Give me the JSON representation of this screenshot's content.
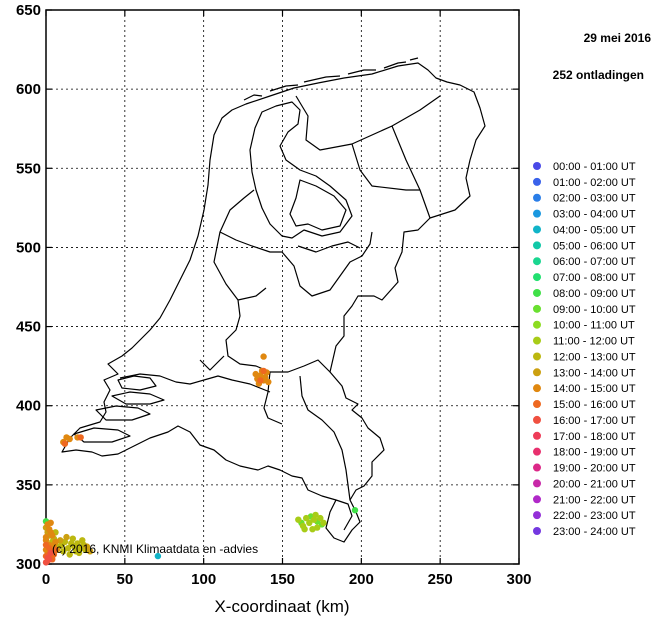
{
  "chart_data": {
    "type": "scatter",
    "title": "",
    "xlabel": "X-coordinaat (km)",
    "ylabel": "",
    "xlim": [
      0,
      300
    ],
    "ylim": [
      300,
      650
    ],
    "x_ticks": [
      "0",
      "50",
      "100",
      "150",
      "200",
      "250",
      "300"
    ],
    "y_ticks": [
      "300",
      "350",
      "400",
      "450",
      "500",
      "550",
      "600",
      "650"
    ],
    "grid": true,
    "legend_position": "right",
    "date": "29 mei 2016",
    "count_label": "252 ontladingen",
    "copyright": "(c) 2016, KNMI Klimaatdata en -advies",
    "legend": [
      {
        "label": "00:00 - 01:00 UT",
        "color": "#4a4ae8"
      },
      {
        "label": "01:00 - 02:00 UT",
        "color": "#3a62ea"
      },
      {
        "label": "02:00 - 03:00 UT",
        "color": "#2a7ee8"
      },
      {
        "label": "03:00 - 04:00 UT",
        "color": "#1a98e0"
      },
      {
        "label": "04:00 - 05:00 UT",
        "color": "#10b4c8"
      },
      {
        "label": "05:00 - 06:00 UT",
        "color": "#12c8a8"
      },
      {
        "label": "06:00 - 07:00 UT",
        "color": "#1ad690"
      },
      {
        "label": "07:00 - 08:00 UT",
        "color": "#22e070"
      },
      {
        "label": "08:00 - 09:00 UT",
        "color": "#40e048"
      },
      {
        "label": "09:00 - 10:00 UT",
        "color": "#6ae030"
      },
      {
        "label": "10:00 - 11:00 UT",
        "color": "#8cdc20"
      },
      {
        "label": "11:00 - 12:00 UT",
        "color": "#a8cc18"
      },
      {
        "label": "12:00 - 13:00 UT",
        "color": "#bcb810"
      },
      {
        "label": "13:00 - 14:00 UT",
        "color": "#cca010"
      },
      {
        "label": "14:00 - 15:00 UT",
        "color": "#e08810"
      },
      {
        "label": "15:00 - 16:00 UT",
        "color": "#ee6820"
      },
      {
        "label": "16:00 - 17:00 UT",
        "color": "#f05040"
      },
      {
        "label": "17:00 - 18:00 UT",
        "color": "#ee3c58"
      },
      {
        "label": "18:00 - 19:00 UT",
        "color": "#e8306e"
      },
      {
        "label": "19:00 - 20:00 UT",
        "color": "#dc2888"
      },
      {
        "label": "20:00 - 21:00 UT",
        "color": "#c828a8"
      },
      {
        "label": "21:00 - 22:00 UT",
        "color": "#b028c8"
      },
      {
        "label": "22:00 - 23:00 UT",
        "color": "#9430d8"
      },
      {
        "label": "23:00 - 24:00 UT",
        "color": "#7438e0"
      }
    ],
    "series": [
      {
        "hour": 4,
        "points": [
          [
            71,
            305
          ]
        ]
      },
      {
        "hour": 8,
        "points": [
          [
            0,
            327
          ],
          [
            196,
            334
          ]
        ]
      },
      {
        "hour": 9,
        "points": [
          [
            162,
            326
          ],
          [
            168,
            330
          ],
          [
            172,
            327
          ],
          [
            175,
            325
          ]
        ]
      },
      {
        "hour": 11,
        "points": [
          [
            160,
            328
          ],
          [
            163,
            324
          ],
          [
            165,
            329
          ],
          [
            167,
            326
          ],
          [
            169,
            322
          ],
          [
            170,
            328
          ],
          [
            172,
            323
          ],
          [
            174,
            329
          ],
          [
            176,
            326
          ],
          [
            164,
            322
          ],
          [
            171,
            331
          ]
        ]
      },
      {
        "hour": 12,
        "points": [
          [
            2,
            318
          ],
          [
            4,
            314
          ],
          [
            5,
            316
          ],
          [
            8,
            311
          ],
          [
            10,
            312
          ],
          [
            12,
            314
          ],
          [
            14,
            310
          ],
          [
            16,
            313
          ],
          [
            18,
            311
          ],
          [
            19,
            308
          ],
          [
            20,
            313
          ],
          [
            22,
            310
          ],
          [
            23,
            315
          ],
          [
            24,
            312
          ],
          [
            25,
            309
          ],
          [
            21,
            307
          ],
          [
            15,
            306
          ],
          [
            11,
            308
          ],
          [
            6,
            320
          ],
          [
            17,
            316
          ]
        ]
      },
      {
        "hour": 13,
        "points": [
          [
            1,
            320
          ],
          [
            3,
            311
          ],
          [
            7,
            309
          ],
          [
            13,
            317
          ],
          [
            26,
            311
          ],
          [
            28,
            308
          ],
          [
            9,
            315
          ],
          [
            0,
            323
          ]
        ]
      },
      {
        "hour": 14,
        "points": [
          [
            0,
            315
          ],
          [
            1,
            325
          ],
          [
            2,
            322
          ],
          [
            3,
            320
          ],
          [
            2,
            312
          ],
          [
            4,
            308
          ],
          [
            5,
            312
          ],
          [
            0,
            309
          ],
          [
            1,
            306
          ],
          [
            6,
            314
          ],
          [
            136,
            419
          ],
          [
            138,
            416
          ],
          [
            140,
            421
          ],
          [
            134,
            417
          ],
          [
            137,
            422
          ],
          [
            135,
            414
          ],
          [
            139,
            418
          ],
          [
            141,
            415
          ],
          [
            133,
            420
          ],
          [
            138,
            431
          ],
          [
            11,
            377
          ],
          [
            13,
            380
          ],
          [
            15,
            379
          ],
          [
            20,
            380
          ],
          [
            0,
            317
          ],
          [
            3,
            326
          ],
          [
            4,
            318
          ]
        ]
      },
      {
        "hour": 15,
        "points": [
          [
            0,
            312
          ],
          [
            2,
            306
          ],
          [
            3,
            304
          ],
          [
            1,
            302
          ],
          [
            4,
            303
          ],
          [
            5,
            306
          ],
          [
            12,
            376
          ],
          [
            136,
            416
          ],
          [
            138,
            422
          ],
          [
            0,
            305
          ],
          [
            2,
            310
          ],
          [
            6,
            309
          ],
          [
            22,
            380
          ]
        ]
      },
      {
        "hour": 16,
        "points": [
          [
            1,
            304
          ],
          [
            3,
            307
          ],
          [
            0,
            301
          ],
          [
            2,
            303
          ]
        ]
      }
    ]
  }
}
